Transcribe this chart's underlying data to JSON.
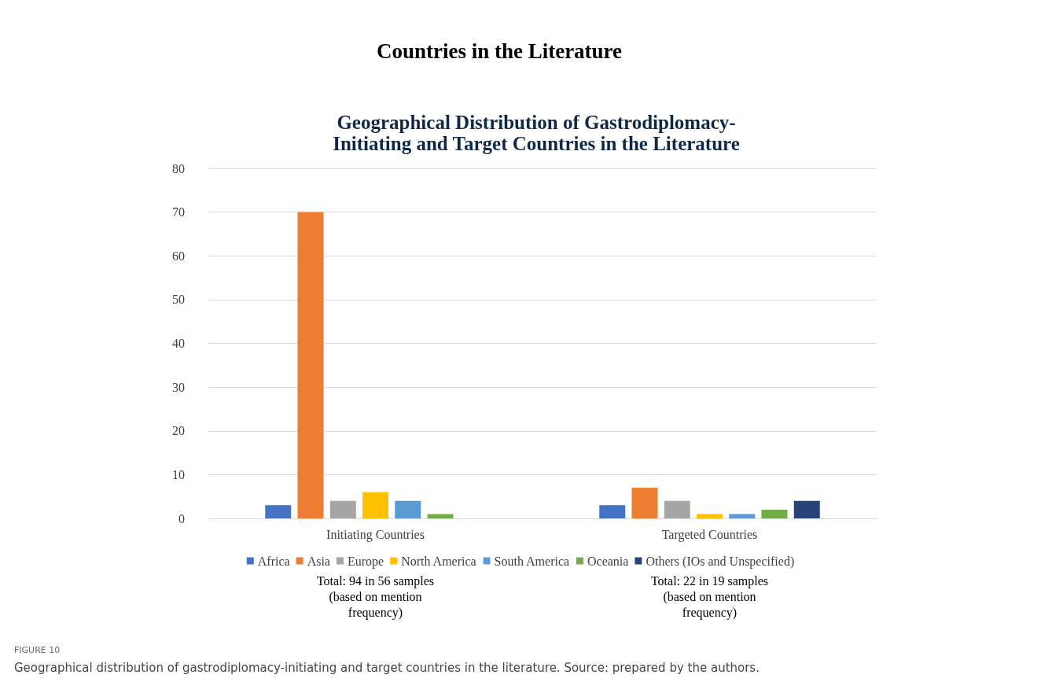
{
  "chart_data": {
    "type": "bar",
    "title": "Countries in the Literature",
    "subtitle": "Geographical Distribution of Gastrodiplomacy-\nInitiating and Target Countries in the Literature",
    "categories": [
      "Initiating Countries",
      "Targeted Countries"
    ],
    "series": [
      {
        "name": "Africa",
        "color": "#4472c4",
        "values": [
          3,
          3
        ]
      },
      {
        "name": "Asia",
        "color": "#ed7d31",
        "values": [
          70,
          7
        ]
      },
      {
        "name": "Europe",
        "color": "#a5a5a5",
        "values": [
          4,
          4
        ]
      },
      {
        "name": "North America",
        "color": "#ffc000",
        "values": [
          6,
          1
        ]
      },
      {
        "name": "South America",
        "color": "#5b9bd5",
        "values": [
          4,
          1
        ]
      },
      {
        "name": "Oceania",
        "color": "#70ad47",
        "values": [
          1,
          2
        ]
      },
      {
        "name": "Others (IOs and Unspecified)",
        "color": "#264478",
        "values": [
          0,
          4
        ]
      }
    ],
    "ylim": [
      0,
      80
    ],
    "yticks": [
      0,
      10,
      20,
      30,
      40,
      50,
      60,
      70,
      80
    ],
    "grid": "y",
    "legend": "bottom",
    "annotations": [
      "Total: 94 in 56 samples\n(based on mention\nfrequency)",
      "Total: 22 in 19 samples\n(based on mention\nfrequency)",
      "FIGURE 10",
      "Geographical distribution of gastrodiplomacy-initiating and target countries in the literature. Source: prepared by the authors."
    ]
  }
}
